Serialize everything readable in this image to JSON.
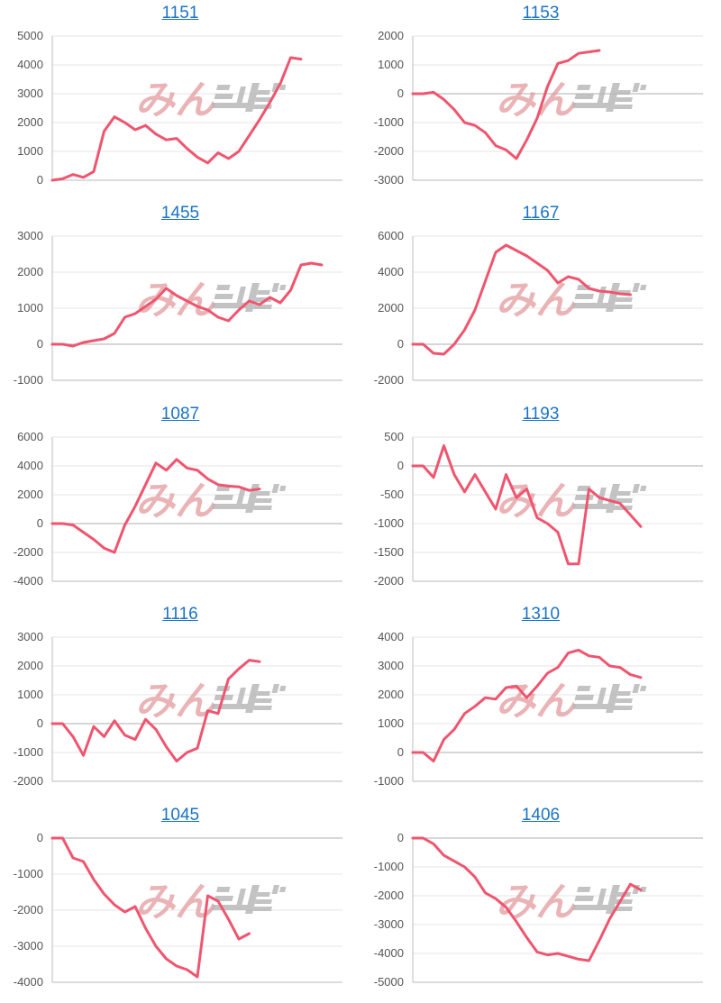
{
  "colors": {
    "line": "#f0556f",
    "grid": "#e6e6e6",
    "axis": "#c8c8c8",
    "zero": "#bdbdbd",
    "link": "#1a73c8",
    "watermark_pink": "#e39a9e",
    "watermark_gray": "#b5b5b5"
  },
  "watermark": {
    "text": "みんレポ"
  },
  "chart_data": [
    {
      "type": "line",
      "title": "1151",
      "ylim": [
        0,
        5000
      ],
      "yticks": [
        0,
        1000,
        2000,
        3000,
        4000,
        5000
      ],
      "x": [
        0,
        1,
        2,
        3,
        4,
        5,
        6,
        7,
        8,
        9,
        10,
        11,
        12,
        13,
        14,
        15,
        16,
        17,
        18,
        19,
        20,
        21,
        22,
        23,
        24,
        25,
        26,
        27,
        28
      ],
      "series": [
        {
          "values": [
            0,
            50,
            200,
            100,
            300,
            1700,
            2200,
            2000,
            1750,
            1900,
            1600,
            1400,
            1450,
            1100,
            800,
            600,
            950,
            750,
            1000,
            1550,
            2100,
            2700,
            3350,
            4250,
            4200,
            null,
            null,
            null,
            null
          ]
        }
      ]
    },
    {
      "type": "line",
      "title": "1153",
      "ylim": [
        -3000,
        2000
      ],
      "yticks": [
        -3000,
        -2000,
        -1000,
        0,
        1000,
        2000
      ],
      "x": [
        0,
        1,
        2,
        3,
        4,
        5,
        6,
        7,
        8,
        9,
        10,
        11,
        12,
        13,
        14,
        15,
        16,
        17,
        18,
        19,
        20,
        21,
        22,
        23,
        24,
        25,
        26,
        27,
        28
      ],
      "series": [
        {
          "values": [
            0,
            0,
            50,
            -200,
            -550,
            -1000,
            -1100,
            -1350,
            -1800,
            -1950,
            -2250,
            -1600,
            -850,
            250,
            1050,
            1150,
            1400,
            1450,
            1500,
            null,
            null,
            null,
            null,
            null,
            null,
            null,
            null,
            null,
            null
          ]
        }
      ]
    },
    {
      "type": "line",
      "title": "1455",
      "ylim": [
        -1000,
        3000
      ],
      "yticks": [
        -1000,
        0,
        1000,
        2000,
        3000
      ],
      "x": [
        0,
        1,
        2,
        3,
        4,
        5,
        6,
        7,
        8,
        9,
        10,
        11,
        12,
        13,
        14,
        15,
        16,
        17,
        18,
        19,
        20,
        21,
        22,
        23,
        24,
        25,
        26,
        27,
        28
      ],
      "series": [
        {
          "values": [
            0,
            0,
            -50,
            50,
            100,
            150,
            300,
            750,
            850,
            1050,
            1250,
            1550,
            1350,
            1200,
            1050,
            950,
            750,
            650,
            950,
            1200,
            1100,
            1300,
            1150,
            1500,
            2200,
            2250,
            2200,
            null,
            null
          ]
        }
      ]
    },
    {
      "type": "line",
      "title": "1167",
      "ylim": [
        -2000,
        6000
      ],
      "yticks": [
        -2000,
        0,
        2000,
        4000,
        6000
      ],
      "x": [
        0,
        1,
        2,
        3,
        4,
        5,
        6,
        7,
        8,
        9,
        10,
        11,
        12,
        13,
        14,
        15,
        16,
        17,
        18,
        19,
        20,
        21,
        22,
        23,
        24,
        25,
        26,
        27,
        28
      ],
      "series": [
        {
          "values": [
            0,
            0,
            -500,
            -550,
            0,
            800,
            1900,
            3500,
            5100,
            5500,
            5200,
            4900,
            4500,
            4100,
            3400,
            3750,
            3600,
            3100,
            2950,
            2900,
            2800,
            2750,
            null,
            null,
            null,
            null,
            null,
            null,
            null
          ]
        }
      ]
    },
    {
      "type": "line",
      "title": "1087",
      "ylim": [
        -4000,
        6000
      ],
      "yticks": [
        -4000,
        -2000,
        0,
        2000,
        4000,
        6000
      ],
      "x": [
        0,
        1,
        2,
        3,
        4,
        5,
        6,
        7,
        8,
        9,
        10,
        11,
        12,
        13,
        14,
        15,
        16,
        17,
        18,
        19,
        20,
        21,
        22,
        23,
        24,
        25,
        26,
        27,
        28
      ],
      "series": [
        {
          "values": [
            0,
            0,
            -100,
            -600,
            -1100,
            -1700,
            -2000,
            -100,
            1200,
            2700,
            4200,
            3700,
            4450,
            3850,
            3700,
            3100,
            2700,
            2600,
            2550,
            2300,
            2400,
            null,
            null,
            null,
            null,
            null,
            null,
            null,
            null
          ]
        }
      ]
    },
    {
      "type": "line",
      "title": "1193",
      "ylim": [
        -2000,
        500
      ],
      "yticks": [
        -2000,
        -1500,
        -1000,
        -500,
        0,
        500
      ],
      "x": [
        0,
        1,
        2,
        3,
        4,
        5,
        6,
        7,
        8,
        9,
        10,
        11,
        12,
        13,
        14,
        15,
        16,
        17,
        18,
        19,
        20,
        21,
        22,
        23,
        24,
        25,
        26,
        27,
        28
      ],
      "series": [
        {
          "values": [
            0,
            0,
            -200,
            350,
            -150,
            -450,
            -150,
            -450,
            -750,
            -150,
            -550,
            -400,
            -900,
            -1000,
            -1150,
            -1700,
            -1700,
            -400,
            -550,
            -600,
            -650,
            -850,
            -1050,
            null,
            null,
            null,
            null,
            null,
            null
          ]
        }
      ]
    },
    {
      "type": "line",
      "title": "1116",
      "ylim": [
        -2000,
        3000
      ],
      "yticks": [
        -2000,
        -1000,
        0,
        1000,
        2000,
        3000
      ],
      "x": [
        0,
        1,
        2,
        3,
        4,
        5,
        6,
        7,
        8,
        9,
        10,
        11,
        12,
        13,
        14,
        15,
        16,
        17,
        18,
        19,
        20,
        21,
        22,
        23,
        24,
        25,
        26,
        27,
        28
      ],
      "series": [
        {
          "values": [
            0,
            0,
            -450,
            -1100,
            -100,
            -450,
            100,
            -400,
            -550,
            150,
            -200,
            -800,
            -1300,
            -1000,
            -850,
            450,
            350,
            1550,
            1900,
            2200,
            2150,
            null,
            null,
            null,
            null,
            null,
            null,
            null,
            null
          ]
        }
      ]
    },
    {
      "type": "line",
      "title": "1310",
      "ylim": [
        -1000,
        4000
      ],
      "yticks": [
        -1000,
        0,
        1000,
        2000,
        3000,
        4000
      ],
      "x": [
        0,
        1,
        2,
        3,
        4,
        5,
        6,
        7,
        8,
        9,
        10,
        11,
        12,
        13,
        14,
        15,
        16,
        17,
        18,
        19,
        20,
        21,
        22,
        23,
        24,
        25,
        26,
        27,
        28
      ],
      "series": [
        {
          "values": [
            0,
            0,
            -300,
            450,
            800,
            1350,
            1600,
            1900,
            1850,
            2250,
            2300,
            1900,
            2300,
            2750,
            2950,
            3450,
            3550,
            3350,
            3300,
            3000,
            2950,
            2700,
            2600,
            null,
            null,
            null,
            null,
            null,
            null
          ]
        }
      ]
    },
    {
      "type": "line",
      "title": "1045",
      "ylim": [
        -4000,
        0
      ],
      "yticks": [
        -4000,
        -3000,
        -2000,
        -1000,
        0
      ],
      "x": [
        0,
        1,
        2,
        3,
        4,
        5,
        6,
        7,
        8,
        9,
        10,
        11,
        12,
        13,
        14,
        15,
        16,
        17,
        18,
        19,
        20,
        21,
        22,
        23,
        24,
        25,
        26,
        27,
        28
      ],
      "series": [
        {
          "values": [
            0,
            0,
            -550,
            -650,
            -1150,
            -1550,
            -1850,
            -2050,
            -1900,
            -2500,
            -3000,
            -3350,
            -3550,
            -3650,
            -3850,
            -1600,
            -1750,
            -2250,
            -2800,
            -2650,
            null,
            null,
            null,
            null,
            null,
            null,
            null,
            null,
            null
          ]
        }
      ]
    },
    {
      "type": "line",
      "title": "1406",
      "ylim": [
        -5000,
        0
      ],
      "yticks": [
        -5000,
        -4000,
        -3000,
        -2000,
        -1000,
        0
      ],
      "x": [
        0,
        1,
        2,
        3,
        4,
        5,
        6,
        7,
        8,
        9,
        10,
        11,
        12,
        13,
        14,
        15,
        16,
        17,
        18,
        19,
        20,
        21,
        22,
        23,
        24,
        25,
        26,
        27,
        28
      ],
      "series": [
        {
          "values": [
            0,
            0,
            -200,
            -600,
            -800,
            -1000,
            -1350,
            -1900,
            -2100,
            -2400,
            -2900,
            -3450,
            -3950,
            -4050,
            -4000,
            -4100,
            -4200,
            -4250,
            -3550,
            -2800,
            -2200,
            -1600,
            -1800,
            null,
            null,
            null,
            null,
            null,
            null
          ]
        }
      ]
    }
  ]
}
